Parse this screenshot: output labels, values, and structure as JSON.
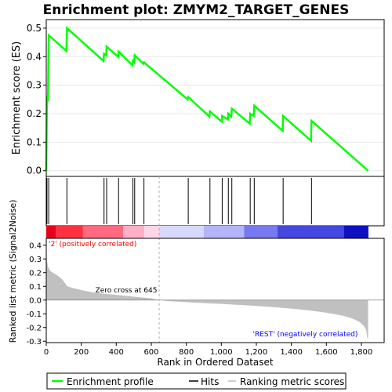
{
  "chart_data": {
    "type": "line",
    "title": "Enrichment plot: ZMYM2_TARGET_GENES",
    "colors": {
      "enrichment_line": "#00ff00",
      "hits": "#000000",
      "metric_fill": "#c0c0c0",
      "zero_line": "#808080",
      "positive_label": "#ff0000",
      "negative_label": "#0000ff",
      "frame": "#000000"
    },
    "enrichment_panel": {
      "ylabel": "Enrichment score (ES)",
      "ylim": [
        -0.02,
        0.53
      ],
      "yticks": [
        0.0,
        0.1,
        0.2,
        0.3,
        0.4,
        0.5
      ],
      "ytick_labels": [
        "0.0",
        "0.1",
        "0.2",
        "0.3",
        "0.4",
        "0.5"
      ],
      "grid": true,
      "points": [
        [
          0,
          0.0
        ],
        [
          4,
          0.255
        ],
        [
          10,
          0.25
        ],
        [
          14,
          0.475
        ],
        [
          115,
          0.42
        ],
        [
          118,
          0.5
        ],
        [
          327,
          0.385
        ],
        [
          330,
          0.41
        ],
        [
          342,
          0.405
        ],
        [
          345,
          0.435
        ],
        [
          410,
          0.4
        ],
        [
          413,
          0.418
        ],
        [
          492,
          0.37
        ],
        [
          495,
          0.385
        ],
        [
          502,
          0.38
        ],
        [
          505,
          0.405
        ],
        [
          555,
          0.375
        ],
        [
          558,
          0.38
        ],
        [
          808,
          0.25
        ],
        [
          811,
          0.258
        ],
        [
          932,
          0.19
        ],
        [
          935,
          0.208
        ],
        [
          1002,
          0.172
        ],
        [
          1005,
          0.192
        ],
        [
          1037,
          0.18
        ],
        [
          1040,
          0.2
        ],
        [
          1057,
          0.19
        ],
        [
          1060,
          0.218
        ],
        [
          1162,
          0.165
        ],
        [
          1165,
          0.2
        ],
        [
          1185,
          0.192
        ],
        [
          1188,
          0.228
        ],
        [
          1350,
          0.14
        ],
        [
          1353,
          0.192
        ],
        [
          1512,
          0.105
        ],
        [
          1515,
          0.175
        ],
        [
          1838,
          0.0
        ]
      ]
    },
    "hits_panel": {
      "hit_positions": [
        4,
        14,
        118,
        330,
        345,
        413,
        495,
        505,
        558,
        811,
        935,
        1005,
        1040,
        1060,
        1165,
        1188,
        1353,
        1515
      ]
    },
    "color_bar": {
      "segments": [
        {
          "start": 0,
          "end": 55,
          "color": "#e8001a"
        },
        {
          "start": 55,
          "end": 210,
          "color": "#ff3040"
        },
        {
          "start": 210,
          "end": 440,
          "color": "#ff6a80"
        },
        {
          "start": 440,
          "end": 560,
          "color": "#ffb0c8"
        },
        {
          "start": 560,
          "end": 645,
          "color": "#ffd6e6"
        },
        {
          "start": 645,
          "end": 900,
          "color": "#d8d8ff"
        },
        {
          "start": 900,
          "end": 1130,
          "color": "#b4b4fa"
        },
        {
          "start": 1130,
          "end": 1320,
          "color": "#7878f0"
        },
        {
          "start": 1320,
          "end": 1700,
          "color": "#4646e0"
        },
        {
          "start": 1700,
          "end": 1840,
          "color": "#1010c0"
        }
      ]
    },
    "metric_panel": {
      "ylabel": "Ranked list metric (Signal2Noise)",
      "ylim": [
        -0.31,
        0.45
      ],
      "yticks": [
        -0.3,
        -0.2,
        -0.1,
        0.0,
        0.1,
        0.2,
        0.3,
        0.4
      ],
      "ytick_labels": [
        "-0.3",
        "-0.2",
        "-0.1",
        "0.0",
        "0.1",
        "0.2",
        "0.3",
        "0.4"
      ],
      "profile": [
        [
          0,
          0.42
        ],
        [
          3,
          0.3
        ],
        [
          10,
          0.24
        ],
        [
          25,
          0.21
        ],
        [
          50,
          0.19
        ],
        [
          75,
          0.17
        ],
        [
          95,
          0.145
        ],
        [
          120,
          0.1
        ],
        [
          160,
          0.085
        ],
        [
          200,
          0.073
        ],
        [
          250,
          0.06
        ],
        [
          300,
          0.05
        ],
        [
          400,
          0.038
        ],
        [
          500,
          0.025
        ],
        [
          600,
          0.012
        ],
        [
          645,
          0.0
        ],
        [
          700,
          -0.008
        ],
        [
          800,
          -0.015
        ],
        [
          900,
          -0.022
        ],
        [
          1000,
          -0.028
        ],
        [
          1100,
          -0.035
        ],
        [
          1200,
          -0.043
        ],
        [
          1300,
          -0.052
        ],
        [
          1400,
          -0.062
        ],
        [
          1500,
          -0.075
        ],
        [
          1600,
          -0.092
        ],
        [
          1700,
          -0.115
        ],
        [
          1750,
          -0.135
        ],
        [
          1790,
          -0.16
        ],
        [
          1815,
          -0.19
        ],
        [
          1828,
          -0.22
        ],
        [
          1834,
          -0.28
        ],
        [
          1838,
          -0.28
        ]
      ],
      "zero_cross_label": "Zero cross at 645",
      "zero_cross": 645,
      "positive_label": "'2' (positively correlated)",
      "negative_label": "'REST' (negatively correlated)"
    },
    "x_axis": {
      "label": "Rank in Ordered Dataset",
      "xlim": [
        0,
        1930
      ],
      "ticks": [
        0,
        200,
        400,
        600,
        800,
        1000,
        1200,
        1400,
        1600,
        1800
      ],
      "tick_labels": [
        "0",
        "200",
        "400",
        "600",
        "800",
        "1,000",
        "1,200",
        "1,400",
        "1,600",
        "1,800"
      ]
    },
    "legend": {
      "position": "bottom",
      "entries": [
        "Enrichment profile",
        "Hits",
        "Ranking metric scores"
      ]
    }
  }
}
